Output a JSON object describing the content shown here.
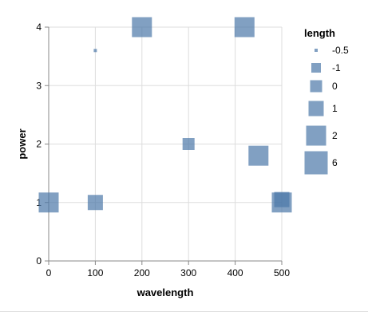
{
  "chart_data": {
    "type": "scatter",
    "title": "",
    "xlabel": "wavelength",
    "ylabel": "power",
    "xlim": [
      0,
      500
    ],
    "ylim": [
      0,
      4
    ],
    "x_ticks": [
      "0",
      "100",
      "200",
      "300",
      "400",
      "500"
    ],
    "y_ticks": [
      "0",
      "1",
      "2",
      "3",
      "4"
    ],
    "grid": true,
    "marker": "square",
    "color": "#4c78a8",
    "points": [
      {
        "x": 0,
        "y": 1,
        "length": 2
      },
      {
        "x": 100,
        "y": 1,
        "length": 1
      },
      {
        "x": 100,
        "y": 3.6,
        "length": -0.5
      },
      {
        "x": 200,
        "y": 4,
        "length": 2
      },
      {
        "x": 300,
        "y": 2,
        "length": 0
      },
      {
        "x": 420,
        "y": 4,
        "length": 2
      },
      {
        "x": 450,
        "y": 1.8,
        "length": 2
      },
      {
        "x": 500,
        "y": 1.05,
        "length": 1
      },
      {
        "x": 500,
        "y": 1,
        "length": 2
      }
    ],
    "legend": {
      "title": "length",
      "placement": "right",
      "entries": [
        {
          "label": "-0.5",
          "value": -0.5
        },
        {
          "label": "-1",
          "value": -1
        },
        {
          "label": "0",
          "value": 0
        },
        {
          "label": "1",
          "value": 1
        },
        {
          "label": "2",
          "value": 2
        },
        {
          "label": "6",
          "value": 6
        }
      ]
    }
  }
}
